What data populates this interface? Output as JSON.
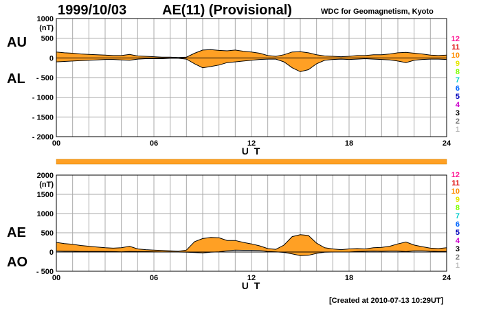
{
  "header": {
    "date": "1999/10/03",
    "title": "AE(11) (Provisional)",
    "source": "WDC for Geomagnetism, Kyoto"
  },
  "footer": {
    "created": "[Created at 2010-07-13 10:29UT]"
  },
  "colors": {
    "fill": "#ffa024",
    "grid": "#aaaaaa",
    "line": "#000000"
  },
  "count_legend": [
    {
      "label": "12",
      "color": "#ff1493"
    },
    {
      "label": "11",
      "color": "#dd0000"
    },
    {
      "label": "10",
      "color": "#ff8c00"
    },
    {
      "label": "9",
      "color": "#e6e600"
    },
    {
      "label": "8",
      "color": "#7fff00"
    },
    {
      "label": "7",
      "color": "#00cccc"
    },
    {
      "label": "6",
      "color": "#0066ff"
    },
    {
      "label": "5",
      "color": "#0000bb"
    },
    {
      "label": "4",
      "color": "#cc00cc"
    },
    {
      "label": "3",
      "color": "#000000"
    },
    {
      "label": "2",
      "color": "#777777"
    },
    {
      "label": "1",
      "color": "#bbbbbb"
    }
  ],
  "chart_data": [
    {
      "type": "area",
      "panel": "AU/AL",
      "labels": {
        "upper": "AU",
        "lower": "AL"
      },
      "y_unit": "(nT)",
      "ylim": [
        -2000,
        1000
      ],
      "y_ticks": [
        "1000",
        "500",
        "0",
        "- 500",
        "- 1000",
        "- 1500",
        "- 2000"
      ],
      "y_tick_values": [
        1000,
        500,
        0,
        -500,
        -1000,
        -1500,
        -2000
      ],
      "xlim": [
        0,
        24
      ],
      "x_ticks": [
        "00",
        "06",
        "12",
        "18",
        "24"
      ],
      "x_tick_values": [
        0,
        6,
        12,
        18,
        24
      ],
      "xlabel": "U T",
      "grid": true,
      "x": [
        0,
        0.5,
        1,
        1.5,
        2,
        2.5,
        3,
        3.5,
        4,
        4.5,
        5,
        5.5,
        6,
        6.5,
        7,
        7.5,
        8,
        8.5,
        9,
        9.5,
        10,
        10.5,
        11,
        11.5,
        12,
        12.5,
        13,
        13.5,
        14,
        14.5,
        15,
        15.5,
        16,
        16.5,
        17,
        17.5,
        18,
        18.5,
        19,
        19.5,
        20,
        20.5,
        21,
        21.5,
        22,
        22.5,
        23,
        23.5,
        24
      ],
      "series": [
        {
          "name": "AU",
          "values": [
            150,
            130,
            120,
            100,
            90,
            80,
            70,
            60,
            60,
            90,
            50,
            40,
            30,
            20,
            20,
            10,
            20,
            120,
            200,
            210,
            190,
            180,
            200,
            170,
            150,
            120,
            60,
            40,
            80,
            150,
            160,
            130,
            80,
            50,
            40,
            30,
            40,
            60,
            60,
            80,
            80,
            100,
            130,
            140,
            120,
            100,
            70,
            60,
            70
          ]
        },
        {
          "name": "AL",
          "values": [
            -100,
            -90,
            -80,
            -70,
            -60,
            -50,
            -40,
            -40,
            -50,
            -60,
            -30,
            -20,
            -20,
            -20,
            -10,
            -10,
            -30,
            -150,
            -250,
            -220,
            -180,
            -120,
            -100,
            -80,
            -60,
            -40,
            -30,
            -30,
            -100,
            -250,
            -350,
            -300,
            -150,
            -60,
            -40,
            -30,
            -40,
            -30,
            -20,
            -30,
            -40,
            -50,
            -80,
            -120,
            -60,
            -40,
            -30,
            -30,
            -40
          ]
        }
      ]
    },
    {
      "type": "area",
      "panel": "AE/AO",
      "labels": {
        "upper": "AE",
        "lower": "AO"
      },
      "y_unit": "(nT)",
      "ylim": [
        -500,
        2000
      ],
      "y_ticks": [
        "2000",
        "1500",
        "1000",
        "500",
        "0",
        "- 500"
      ],
      "y_tick_values": [
        2000,
        1500,
        1000,
        500,
        0,
        -500
      ],
      "xlim": [
        0,
        24
      ],
      "x_ticks": [
        "00",
        "06",
        "12",
        "18",
        "24"
      ],
      "x_tick_values": [
        0,
        6,
        12,
        18,
        24
      ],
      "xlabel": "U T",
      "grid": true,
      "x": [
        0,
        0.5,
        1,
        1.5,
        2,
        2.5,
        3,
        3.5,
        4,
        4.5,
        5,
        5.5,
        6,
        6.5,
        7,
        7.5,
        8,
        8.5,
        9,
        9.5,
        10,
        10.5,
        11,
        11.5,
        12,
        12.5,
        13,
        13.5,
        14,
        14.5,
        15,
        15.5,
        16,
        16.5,
        17,
        17.5,
        18,
        18.5,
        19,
        19.5,
        20,
        20.5,
        21,
        21.5,
        22,
        22.5,
        23,
        23.5,
        24
      ],
      "series": [
        {
          "name": "AE",
          "values": [
            250,
            220,
            200,
            170,
            150,
            130,
            110,
            100,
            110,
            150,
            80,
            60,
            50,
            40,
            30,
            20,
            50,
            270,
            350,
            380,
            370,
            300,
            300,
            250,
            210,
            160,
            90,
            70,
            180,
            400,
            450,
            430,
            230,
            110,
            80,
            60,
            80,
            90,
            80,
            110,
            120,
            150,
            210,
            260,
            180,
            140,
            100,
            90,
            110
          ]
        },
        {
          "name": "AO",
          "values": [
            25,
            20,
            20,
            15,
            15,
            15,
            15,
            10,
            5,
            15,
            10,
            10,
            5,
            0,
            5,
            0,
            -5,
            -15,
            -25,
            -5,
            5,
            30,
            50,
            45,
            45,
            40,
            15,
            5,
            -10,
            -50,
            -95,
            -85,
            -35,
            -5,
            0,
            0,
            0,
            15,
            20,
            25,
            20,
            25,
            25,
            10,
            30,
            30,
            20,
            15,
            15
          ]
        }
      ]
    }
  ]
}
